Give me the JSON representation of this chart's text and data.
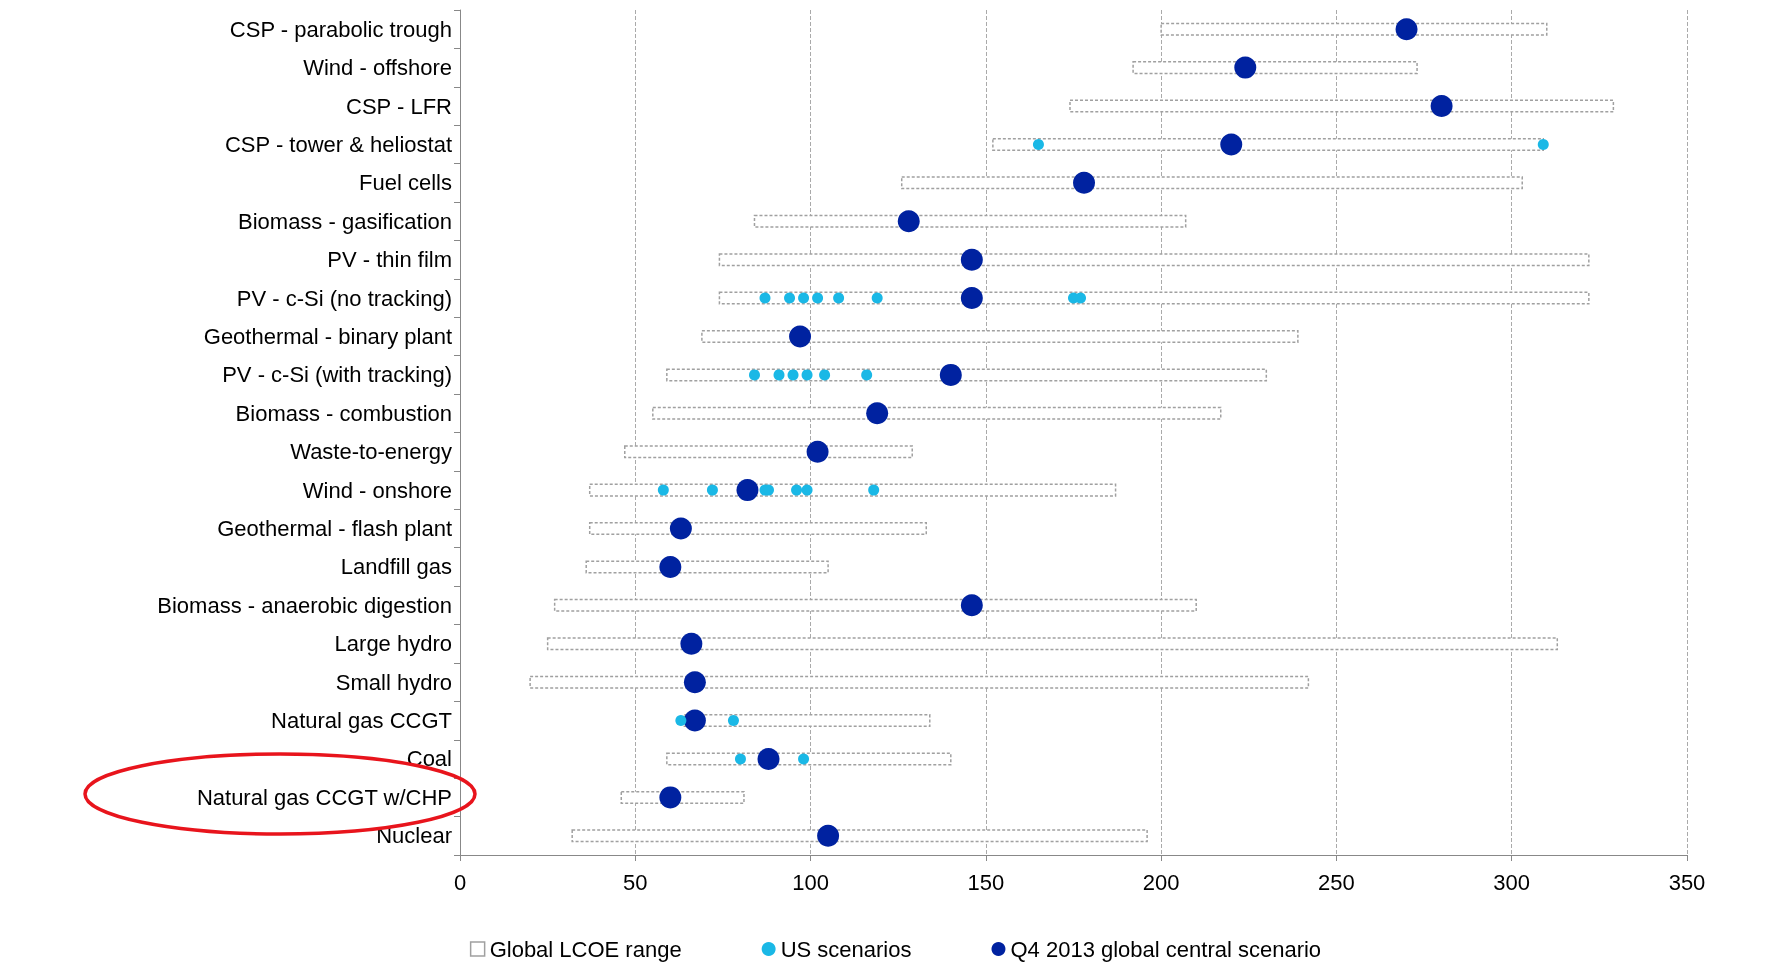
{
  "chart_data": {
    "type": "bar",
    "orientation": "horizontal",
    "categories": [
      "CSP - parabolic trough",
      "Wind - offshore",
      "CSP - LFR",
      "CSP - tower & heliostat",
      "Fuel cells",
      "Biomass - gasification",
      "PV - thin film",
      "PV - c-Si (no tracking)",
      "Geothermal - binary plant",
      "PV - c-Si (with tracking)",
      "Biomass - combustion",
      "Waste-to-energy",
      "Wind - onshore",
      "Geothermal - flash plant",
      "Landfill gas",
      "Biomass - anaerobic digestion",
      "Large hydro",
      "Small hydro",
      "Natural gas CCGT",
      "Coal",
      "Natural gas CCGT w/CHP",
      "Nuclear"
    ],
    "series": [
      {
        "name": "Global LCOE range",
        "type": "bar",
        "color": "#a0a0a0",
        "base": [
          200,
          192,
          174,
          152,
          126,
          84,
          74,
          74,
          69,
          59,
          55,
          47,
          37,
          37,
          36,
          27,
          25,
          20,
          64,
          59,
          46,
          32
        ],
        "values": [
          110,
          81,
          155,
          157,
          177,
          123,
          248,
          248,
          170,
          171,
          162,
          82,
          150,
          96,
          69,
          183,
          288,
          222,
          70,
          81,
          35,
          164
        ]
      },
      {
        "name": "US scenarios",
        "type": "scatter",
        "color": "#1ab8e6",
        "x": [
          "CSP - tower & heliostat",
          "CSP - tower & heliostat",
          "PV - c-Si (no tracking)",
          "PV - c-Si (no tracking)",
          "PV - c-Si (no tracking)",
          "PV - c-Si (no tracking)",
          "PV - c-Si (no tracking)",
          "PV - c-Si (no tracking)",
          "PV - c-Si (no tracking)",
          "PV - c-Si (no tracking)",
          "PV - c-Si (with tracking)",
          "PV - c-Si (with tracking)",
          "PV - c-Si (with tracking)",
          "PV - c-Si (with tracking)",
          "PV - c-Si (with tracking)",
          "PV - c-Si (with tracking)",
          "Wind - onshore",
          "Wind - onshore",
          "Wind - onshore",
          "Wind - onshore",
          "Wind - onshore",
          "Wind - onshore",
          "Wind - onshore",
          "Natural gas CCGT",
          "Natural gas CCGT",
          "Coal",
          "Coal"
        ],
        "values": [
          165,
          309,
          87,
          94,
          98,
          102,
          108,
          119,
          175,
          177,
          84,
          91,
          95,
          99,
          104,
          116,
          58,
          72,
          87,
          88,
          96,
          99,
          118,
          63,
          78,
          80,
          98
        ]
      },
      {
        "name": "Q4 2013 global central scenario",
        "type": "scatter",
        "color": "#0022a0",
        "values": [
          270,
          224,
          280,
          220,
          178,
          128,
          146,
          146,
          97,
          140,
          119,
          102,
          82,
          63,
          60,
          146,
          66,
          67,
          67,
          88,
          60,
          105
        ]
      }
    ],
    "xlim": [
      0,
      350
    ],
    "xticks": [
      0,
      50,
      100,
      150,
      200,
      250,
      300,
      350
    ],
    "grid": "x",
    "legend": "bottom",
    "marker": "circle"
  }
}
